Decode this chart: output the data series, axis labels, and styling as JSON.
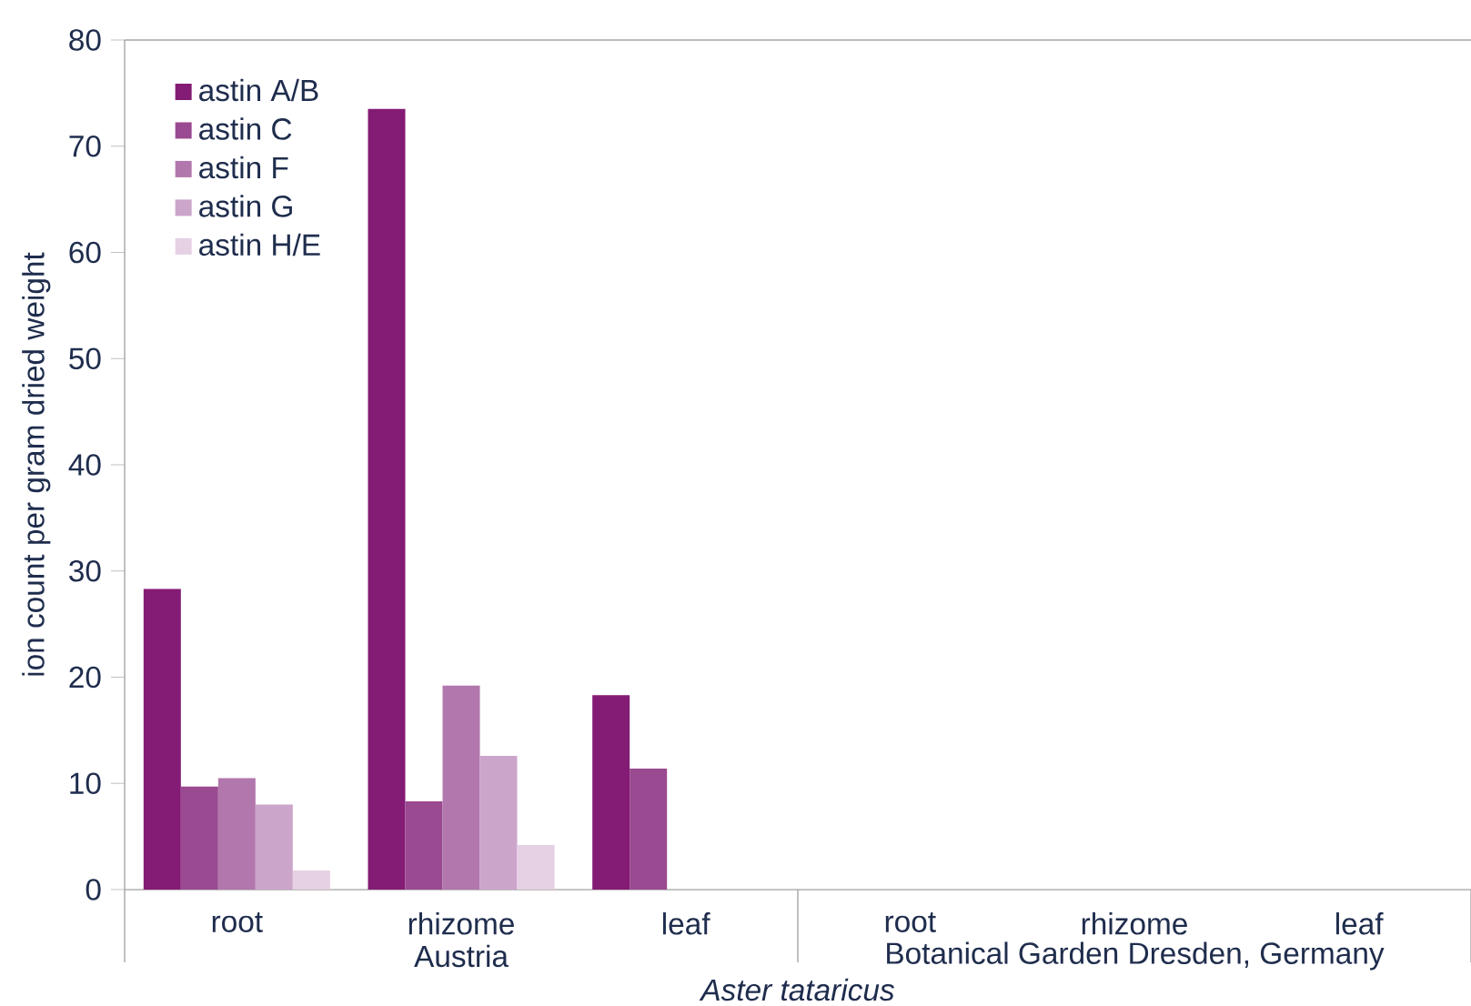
{
  "chart_data": {
    "type": "bar",
    "xlabel": "Aster tataricus",
    "ylabel": "ion count per gram dried weight",
    "categories": [
      "root",
      "rhizome",
      "leaf",
      "root",
      "rhizome",
      "leaf"
    ],
    "series": [
      {
        "name": "astin A/B",
        "color": "#841b74",
        "values": [
          28.3,
          73.5,
          18.3,
          null,
          null,
          null
        ]
      },
      {
        "name": "astin C",
        "color": "#9a4a90",
        "values": [
          9.7,
          8.3,
          11.4,
          null,
          null,
          null
        ]
      },
      {
        "name": "astin F",
        "color": "#b277ad",
        "values": [
          10.5,
          19.2,
          null,
          null,
          null,
          null
        ]
      },
      {
        "name": "astin G",
        "color": "#cca5cb",
        "values": [
          8.0,
          12.6,
          null,
          null,
          null,
          null
        ]
      },
      {
        "name": "astin H/E",
        "color": "#e6d0e4",
        "values": [
          1.8,
          4.2,
          null,
          null,
          null,
          null
        ]
      }
    ],
    "annotations": [
      "Austria",
      "Botanical Garden Dresden, Germany"
    ],
    "ylim": [
      0,
      80
    ],
    "yticks": [
      0,
      10,
      20,
      30,
      40,
      50,
      60,
      70,
      80
    ],
    "legend": "top left",
    "grid": false
  }
}
